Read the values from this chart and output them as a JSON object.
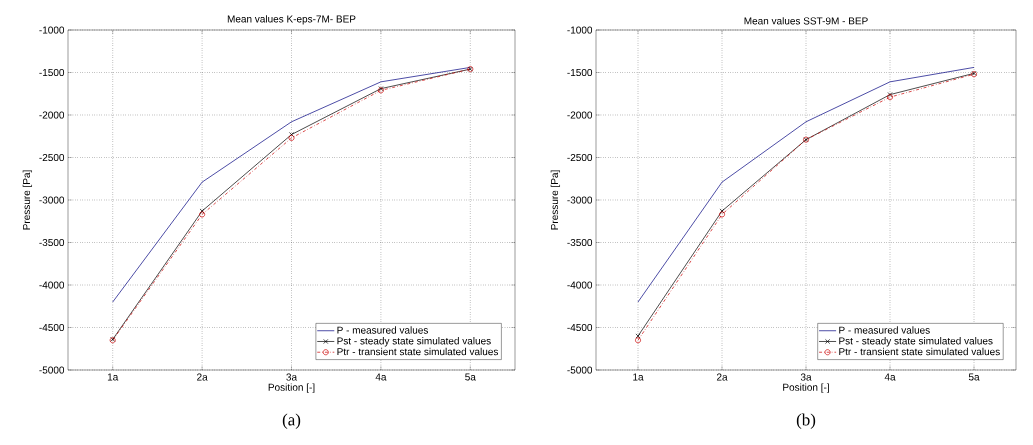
{
  "chart_data": [
    {
      "type": "line",
      "title": "Mean values K-eps-7M- BEP",
      "xlabel": "Position [-]",
      "ylabel": "Pressure [Pa]",
      "categories": [
        "1a",
        "2a",
        "3a",
        "4a",
        "5a"
      ],
      "ylim": [
        -5000,
        -1000
      ],
      "yticks": [
        -5000,
        -4500,
        -4000,
        -3500,
        -3000,
        -2500,
        -2000,
        -1500,
        -1000
      ],
      "grid": true,
      "legend": "bottom right",
      "annotations": [
        "(a)"
      ],
      "series": [
        {
          "name": "P - measured values",
          "color": "#00007f",
          "marker": "none",
          "line_style": "solid",
          "values": [
            -4200,
            -2790,
            -2080,
            -1610,
            -1440
          ]
        },
        {
          "name": "Pst - steady state simulated values",
          "color": "#000000",
          "marker": "cross",
          "line_style": "solid",
          "values": [
            -4640,
            -3130,
            -2230,
            -1690,
            -1460
          ]
        },
        {
          "name": "Ptr - transient state simulated values",
          "color": "#cc0000",
          "marker": "circle",
          "line_style": "dashed",
          "values": [
            -4650,
            -3170,
            -2270,
            -1710,
            -1460
          ]
        }
      ]
    },
    {
      "type": "line",
      "title": "Mean values SST-9M - BEP",
      "xlabel": "Position [-]",
      "ylabel": "Pressure [Pa]",
      "categories": [
        "1a",
        "2a",
        "3a",
        "4a",
        "5a"
      ],
      "ylim": [
        -5000,
        -1000
      ],
      "yticks": [
        -5000,
        -4500,
        -4000,
        -3500,
        -3000,
        -2500,
        -2000,
        -1500,
        -1000
      ],
      "grid": true,
      "legend": "bottom right",
      "annotations": [
        "(b)"
      ],
      "series": [
        {
          "name": "P - measured values",
          "color": "#00007f",
          "marker": "none",
          "line_style": "solid",
          "values": [
            -4200,
            -2790,
            -2080,
            -1610,
            -1440
          ]
        },
        {
          "name": "Pst - steady state simulated values",
          "color": "#000000",
          "marker": "cross",
          "line_style": "solid",
          "values": [
            -4600,
            -3130,
            -2290,
            -1760,
            -1510
          ]
        },
        {
          "name": "Ptr - transient state simulated values",
          "color": "#cc0000",
          "marker": "circle",
          "line_style": "dashed",
          "values": [
            -4650,
            -3170,
            -2290,
            -1790,
            -1520
          ]
        }
      ]
    }
  ]
}
